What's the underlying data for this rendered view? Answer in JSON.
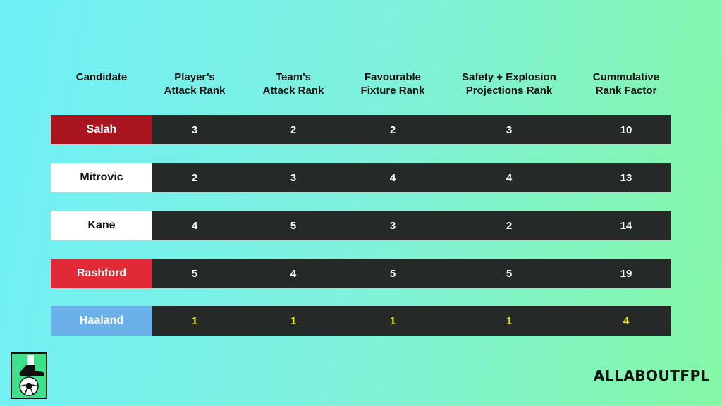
{
  "headers": [
    {
      "lines": [
        "Candidate"
      ]
    },
    {
      "lines": [
        "Player’s",
        "Attack Rank"
      ]
    },
    {
      "lines": [
        "Team’s",
        "Attack Rank"
      ]
    },
    {
      "lines": [
        "Favourable",
        "Fixture Rank"
      ]
    },
    {
      "lines": [
        "Safety + Explosion",
        "Projections Rank"
      ]
    },
    {
      "lines": [
        "Cummulative",
        "Rank Factor"
      ]
    }
  ],
  "chart_data": {
    "type": "table",
    "columns": [
      "Candidate",
      "Player’s Attack Rank",
      "Team’s Attack Rank",
      "Favourable Fixture Rank",
      "Safety + Explosion Projections Rank",
      "Cummulative Rank Factor"
    ],
    "rows": [
      {
        "candidate": "Salah",
        "values": [
          3,
          2,
          2,
          3,
          10
        ],
        "name_bg": "#a8151f",
        "name_color": "#ffffff",
        "value_color": "#ffffff"
      },
      {
        "candidate": "Mitrovic",
        "values": [
          2,
          3,
          4,
          4,
          13
        ],
        "name_bg": "#ffffff",
        "name_color": "#111111",
        "value_color": "#ffffff"
      },
      {
        "candidate": "Kane",
        "values": [
          4,
          5,
          3,
          2,
          14
        ],
        "name_bg": "#ffffff",
        "name_color": "#111111",
        "value_color": "#ffffff"
      },
      {
        "candidate": "Rashford",
        "values": [
          5,
          4,
          5,
          5,
          19
        ],
        "name_bg": "#e02b36",
        "name_color": "#ffffff",
        "value_color": "#ffffff"
      },
      {
        "candidate": "Haaland",
        "values": [
          1,
          1,
          1,
          1,
          4
        ],
        "name_bg": "#6bb0e8",
        "name_color": "#ffffff",
        "value_color": "#f2e600"
      }
    ]
  },
  "brand": {
    "text": "ALLABOUTFPL",
    "logo_icon": "boot-and-football-icon"
  }
}
